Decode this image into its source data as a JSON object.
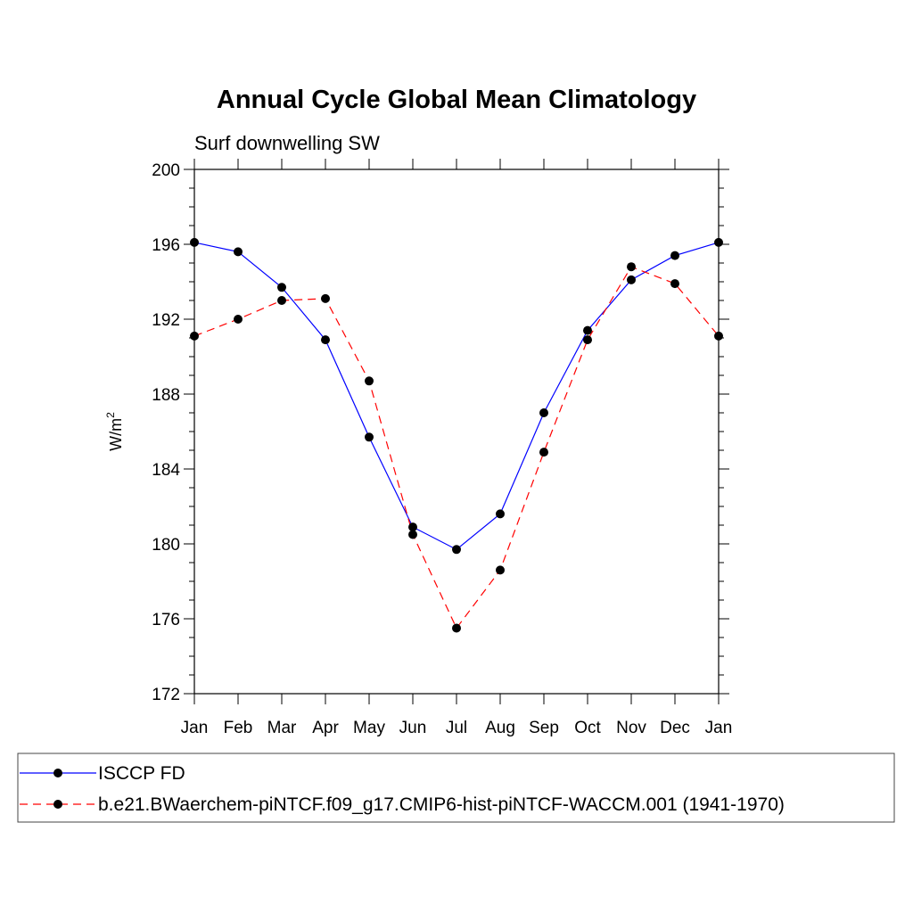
{
  "chart_data": {
    "type": "line",
    "title": "Annual Cycle Global Mean Climatology",
    "subtitle": "Surf downwelling SW",
    "ylabel": "W/m",
    "ylabel_sup": "2",
    "xlabel": "",
    "categories": [
      "Jan",
      "Feb",
      "Mar",
      "Apr",
      "May",
      "Jun",
      "Jul",
      "Aug",
      "Sep",
      "Oct",
      "Nov",
      "Dec",
      "Jan"
    ],
    "ylim": [
      172,
      200
    ],
    "yticks": [
      172,
      176,
      180,
      184,
      188,
      192,
      196,
      200
    ],
    "series": [
      {
        "name": "ISCCP FD",
        "color": "#0000ff",
        "dash": "solid",
        "values": [
          196.1,
          195.6,
          193.7,
          190.9,
          185.7,
          180.9,
          179.7,
          181.6,
          187.0,
          191.4,
          194.1,
          195.4,
          196.1
        ]
      },
      {
        "name": "b.e21.BWaerchem-piNTCF.f09_g17.CMIP6-hist-piNTCF-WACCM.001 (1941-1970)",
        "color": "#ff0000",
        "dash": "dashed",
        "values": [
          191.1,
          192.0,
          193.0,
          193.1,
          188.7,
          180.5,
          175.5,
          178.6,
          184.9,
          190.9,
          194.8,
          193.9,
          191.1
        ]
      }
    ],
    "marker_color": "#000000",
    "legend_position": "bottom"
  }
}
